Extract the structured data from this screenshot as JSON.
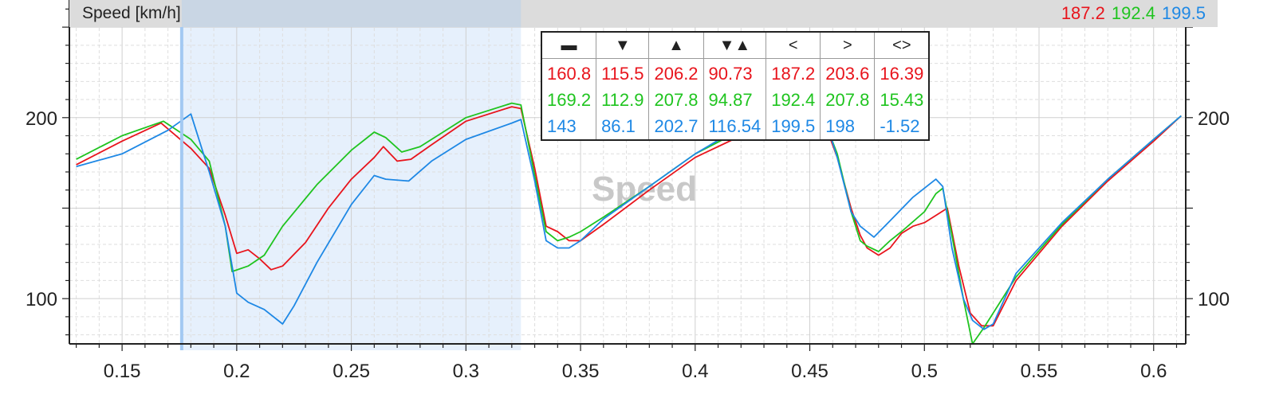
{
  "header": {
    "title": "Speed [km/h]",
    "cursor_values": [
      {
        "value": "187.2",
        "color": "#e8141c"
      },
      {
        "value": "192.4",
        "color": "#1fc41f"
      },
      {
        "value": "199.5",
        "color": "#1e88e5"
      }
    ]
  },
  "watermark": "Speed",
  "stats_table": {
    "columns": [
      "▬",
      "▼",
      "▲",
      "▼▲",
      "<",
      ">",
      "<>"
    ],
    "rows": [
      {
        "color": "#e8141c",
        "cells": [
          "160.8",
          "115.5",
          "206.2",
          "90.73",
          "187.2",
          "203.6",
          "16.39"
        ]
      },
      {
        "color": "#1fc41f",
        "cells": [
          "169.2",
          "112.9",
          "207.8",
          "94.87",
          "192.4",
          "207.8",
          "15.43"
        ]
      },
      {
        "color": "#1e88e5",
        "cells": [
          "143",
          "86.1",
          "202.7",
          "116.54",
          "199.5",
          "198",
          "-1.52"
        ]
      }
    ]
  },
  "chart_data": {
    "type": "line",
    "title": "",
    "xlabel": "",
    "ylabel": "Speed [km/h]",
    "xlim": [
      0.127,
      0.614
    ],
    "ylim": [
      75,
      265
    ],
    "x_ticks": [
      0.15,
      0.2,
      0.25,
      0.3,
      0.35,
      0.4,
      0.45,
      0.5,
      0.55,
      0.6
    ],
    "x_tick_labels": [
      "0.15",
      "0.2",
      "0.25",
      "0.3",
      "0.35",
      "0.4",
      "0.45",
      "0.5",
      "0.55",
      "0.6"
    ],
    "y_ticks": [
      100,
      200
    ],
    "y_tick_labels": [
      "100",
      "200"
    ],
    "grid": true,
    "cursor_x": 0.176,
    "selection_range": [
      0.176,
      0.324
    ],
    "series": [
      {
        "color": "#e8141c",
        "x": [
          0.13,
          0.15,
          0.167,
          0.18,
          0.188,
          0.195,
          0.2,
          0.205,
          0.21,
          0.215,
          0.22,
          0.23,
          0.24,
          0.25,
          0.26,
          0.264,
          0.27,
          0.276,
          0.285,
          0.3,
          0.32,
          0.324,
          0.33,
          0.335,
          0.34,
          0.345,
          0.35,
          0.36,
          0.38,
          0.4,
          0.42,
          0.44,
          0.455,
          0.462,
          0.468,
          0.472,
          0.475,
          0.48,
          0.485,
          0.49,
          0.495,
          0.5,
          0.505,
          0.51,
          0.515,
          0.52,
          0.525,
          0.53,
          0.54,
          0.56,
          0.58,
          0.6,
          0.612
        ],
        "y": [
          174,
          187,
          197,
          183,
          172,
          146,
          125,
          127,
          122,
          116,
          118,
          131,
          150,
          166,
          178,
          184,
          176,
          177,
          185,
          198,
          206,
          205,
          172,
          140,
          137,
          132,
          132,
          141,
          160,
          178,
          190,
          198,
          202,
          178,
          150,
          135,
          128,
          124,
          128,
          136,
          140,
          142,
          146,
          150,
          118,
          92,
          85,
          85,
          110,
          140,
          165,
          187,
          201
        ]
      },
      {
        "color": "#1fc41f",
        "x": [
          0.13,
          0.15,
          0.168,
          0.18,
          0.188,
          0.195,
          0.198,
          0.205,
          0.212,
          0.22,
          0.235,
          0.25,
          0.26,
          0.265,
          0.272,
          0.28,
          0.29,
          0.3,
          0.32,
          0.324,
          0.33,
          0.335,
          0.34,
          0.345,
          0.35,
          0.36,
          0.38,
          0.4,
          0.42,
          0.44,
          0.455,
          0.462,
          0.468,
          0.472,
          0.475,
          0.48,
          0.485,
          0.49,
          0.5,
          0.505,
          0.508,
          0.512,
          0.517,
          0.521,
          0.526,
          0.53,
          0.54,
          0.56,
          0.58,
          0.6,
          0.612
        ],
        "y": [
          177,
          190,
          198,
          188,
          176,
          140,
          115,
          118,
          124,
          140,
          163,
          182,
          192,
          189,
          181,
          184,
          192,
          200,
          208,
          207,
          168,
          137,
          132,
          134,
          137,
          145,
          162,
          180,
          193,
          200,
          203,
          180,
          148,
          132,
          129,
          126,
          132,
          137,
          148,
          158,
          161,
          135,
          100,
          75,
          84,
          92,
          112,
          141,
          166,
          188,
          201
        ]
      },
      {
        "color": "#1e88e5",
        "x": [
          0.13,
          0.15,
          0.17,
          0.18,
          0.188,
          0.195,
          0.2,
          0.205,
          0.212,
          0.22,
          0.225,
          0.235,
          0.25,
          0.26,
          0.265,
          0.275,
          0.285,
          0.3,
          0.32,
          0.324,
          0.33,
          0.335,
          0.34,
          0.345,
          0.35,
          0.36,
          0.38,
          0.4,
          0.42,
          0.44,
          0.455,
          0.462,
          0.468,
          0.472,
          0.478,
          0.485,
          0.495,
          0.505,
          0.508,
          0.512,
          0.517,
          0.521,
          0.526,
          0.53,
          0.54,
          0.56,
          0.58,
          0.6,
          0.612
        ],
        "y": [
          173,
          180,
          193,
          202,
          170,
          140,
          103,
          98,
          94,
          86,
          96,
          120,
          152,
          168,
          166,
          165,
          176,
          188,
          197,
          199,
          165,
          132,
          128,
          128,
          132,
          144,
          162,
          180,
          195,
          202,
          206,
          178,
          148,
          140,
          134,
          143,
          156,
          166,
          162,
          128,
          100,
          88,
          83,
          86,
          114,
          142,
          166,
          188,
          201
        ]
      }
    ]
  }
}
